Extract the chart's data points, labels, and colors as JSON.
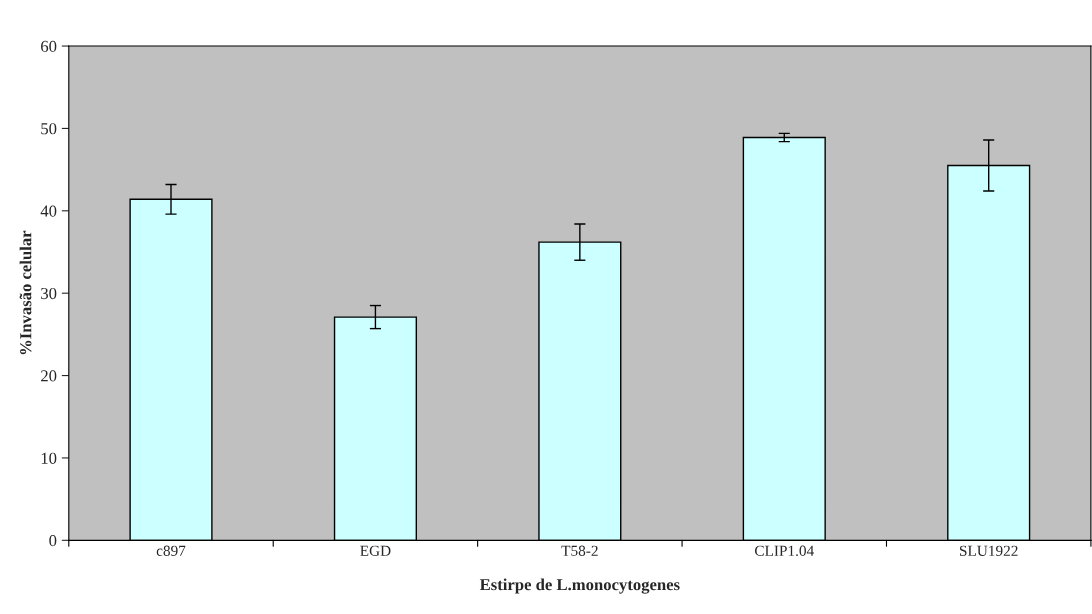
{
  "chart_data": {
    "type": "bar",
    "xlabel": "Estirpe de L.monocytogenes",
    "ylabel": "%Invasão celular",
    "categories": [
      "c897",
      "EGD",
      "T58-2",
      "CLIP1.04",
      "SLU1922"
    ],
    "values": [
      41.4,
      27.1,
      36.2,
      48.9,
      45.5
    ],
    "errors": [
      1.8,
      1.4,
      2.2,
      0.5,
      3.1
    ],
    "color": "#ccffff",
    "ylim": [
      0,
      60
    ],
    "yticks": [
      0,
      10,
      20,
      30,
      40,
      50,
      60
    ],
    "grid": false,
    "legend": false
  }
}
